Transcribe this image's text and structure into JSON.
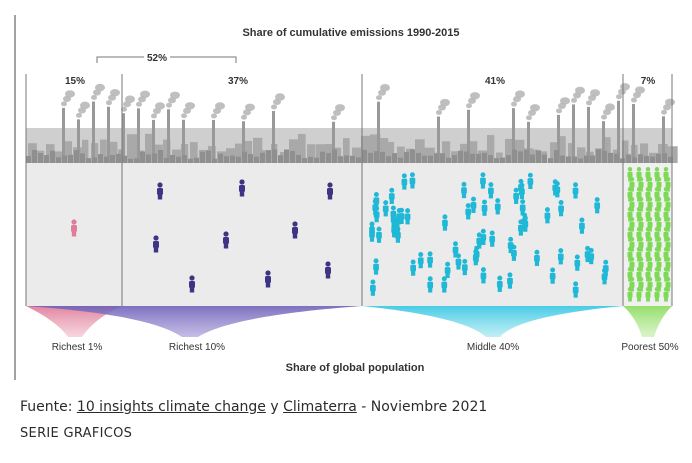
{
  "chart_data": {
    "type": "bar",
    "title": "Share of cumulative emissions 1990-2015",
    "xlabel": "Share of global population",
    "categories": [
      "Richest 1%",
      "Richest 10%",
      "Middle 40%",
      "Poorest 50%"
    ],
    "population_share": [
      1,
      10,
      40,
      50
    ],
    "values": [
      15,
      37,
      41,
      7
    ],
    "value_labels": [
      "15%",
      "37%",
      "41%",
      "7%"
    ],
    "group_annotation": {
      "label": "52%",
      "value": 52,
      "spans": [
        "Richest 1%",
        "Richest 10%"
      ]
    },
    "colors": {
      "Richest 1%": "#e07e9a",
      "Richest 10%": "#3d3584",
      "Middle 40%": "#1fb8d6",
      "Poorest 50%": "#7ed957"
    }
  },
  "caption": {
    "prefix": "Fuente: ",
    "link1": "10 insights climate change",
    "middle": " y ",
    "link2": "Climaterra",
    "suffix": " - Noviembre 2021"
  },
  "series_label": "SERIE GRAFICOS"
}
